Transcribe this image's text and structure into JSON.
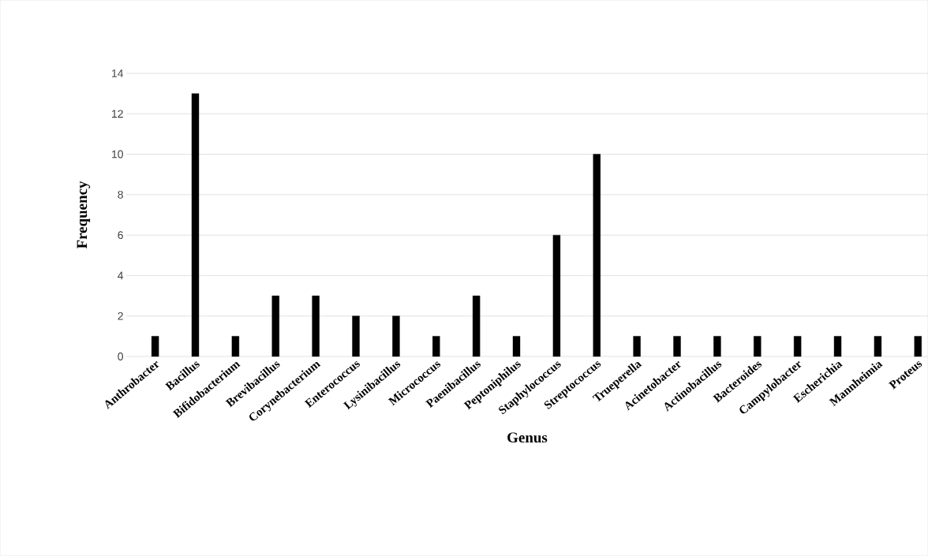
{
  "chart_data": {
    "type": "bar",
    "xlabel": "Genus",
    "ylabel": "Frequency",
    "categories": [
      "Anthrobacter",
      "Bacillus",
      "Bifidobacterium",
      "Brevibacillus",
      "Corynebacterium",
      "Enterococcus",
      "Lysinibacillus",
      "Micrococcus",
      "Paenibacillus",
      "Peptoniphilus",
      "Staphylococcus",
      "Streptococcus",
      "Trueperella",
      "Acinetobacter",
      "Actinobacillus",
      "Bacteroides",
      "Campylobacter",
      "Escherichia",
      "Mannheimia",
      "Proteus"
    ],
    "values": [
      1,
      13,
      1,
      3,
      3,
      2,
      2,
      1,
      3,
      1,
      6,
      10,
      1,
      1,
      1,
      1,
      1,
      1,
      1,
      1
    ],
    "color": "#000000",
    "ylim": [
      0,
      14
    ],
    "yticks": [
      0,
      2,
      4,
      6,
      8,
      10,
      12,
      14
    ],
    "grid": "y"
  }
}
